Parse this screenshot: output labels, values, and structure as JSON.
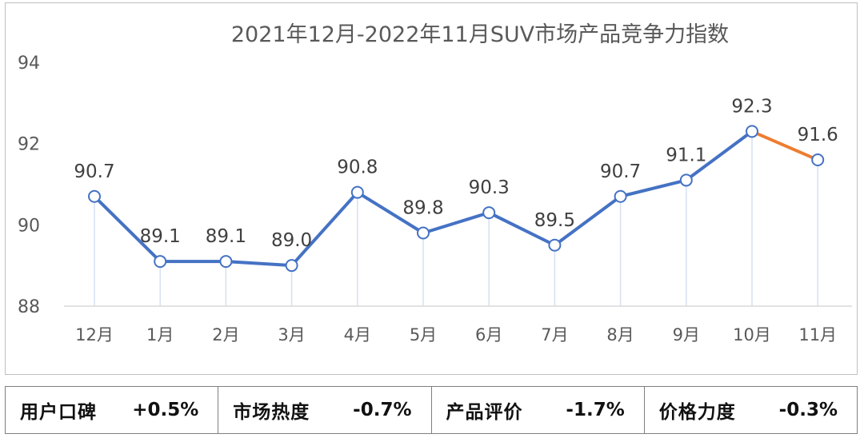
{
  "chart_data": {
    "type": "line",
    "title": "2021年12月-2022年11月SUV市场产品竞争力指数",
    "categories": [
      "12月",
      "1月",
      "2月",
      "3月",
      "4月",
      "5月",
      "6月",
      "7月",
      "8月",
      "9月",
      "10月",
      "11月"
    ],
    "series": [
      {
        "values": [
          90.7,
          89.1,
          89.1,
          89.0,
          90.8,
          89.8,
          90.3,
          89.5,
          90.7,
          91.1,
          92.3,
          91.6
        ]
      }
    ],
    "data_labels": [
      "90.7",
      "89.1",
      "89.1",
      "89.0",
      "90.8",
      "89.8",
      "90.3",
      "89.5",
      "90.7",
      "91.1",
      "92.3",
      "91.6"
    ],
    "ylim": [
      88,
      94
    ],
    "yticks": [
      "88",
      "90",
      "92",
      "94"
    ],
    "xlabel": "",
    "ylabel": "",
    "colors": {
      "line": "#4472c4",
      "last_segment": "#ed7d31",
      "marker_fill": "#ffffff",
      "drop_line": "#d6e0f2"
    }
  },
  "metrics": [
    {
      "label": "用户口碑",
      "value": "+0.5%"
    },
    {
      "label": "市场热度",
      "value": "-0.7%"
    },
    {
      "label": "产品评价",
      "value": "-1.7%"
    },
    {
      "label": "价格力度",
      "value": "-0.3%"
    }
  ]
}
